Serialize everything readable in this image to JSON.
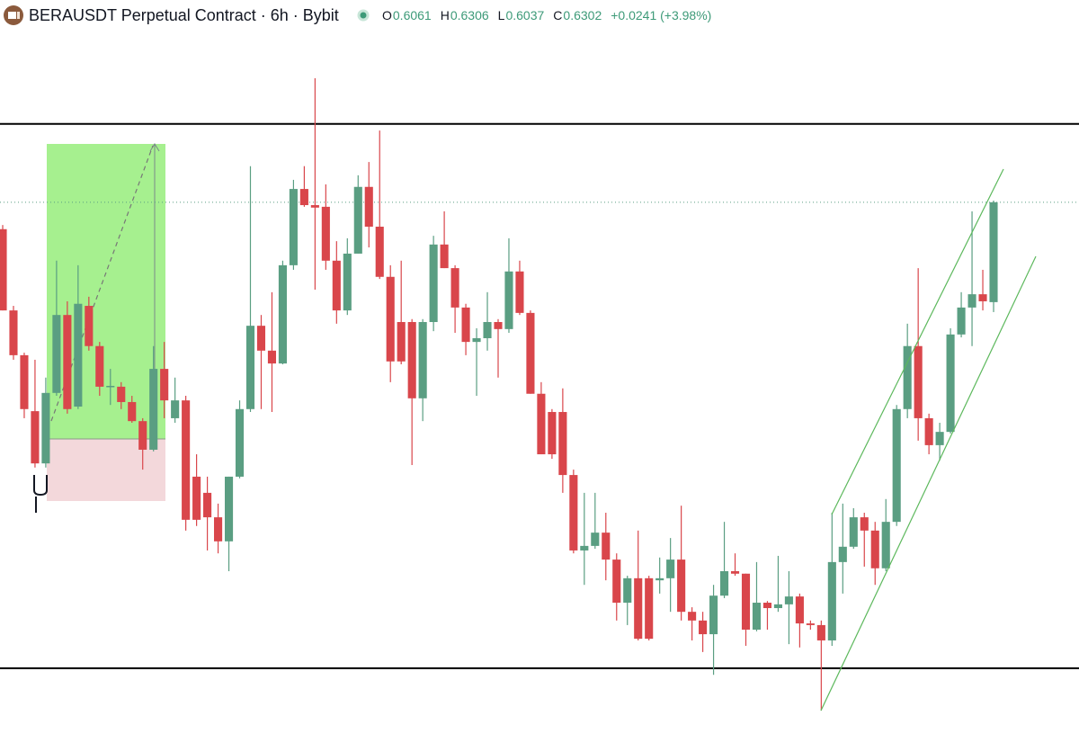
{
  "chart_data": {
    "type": "candlestick",
    "title": "BERAUSDT Perpetual Contract · 6h · Bybit",
    "ohlc_labels": [
      "O",
      "H",
      "L",
      "C"
    ],
    "change_label": "+0.0241 (+3.98%)",
    "up_color": "#5a9e82",
    "down_color": "#d9464b",
    "level_color": "#000000",
    "ylim": [
      0.5054,
      0.6703
    ],
    "levels": [
      0.6491,
      0.5178
    ],
    "open": [
      0.6237,
      0.6041,
      0.5933,
      0.5798,
      0.5672,
      0.5842,
      0.603,
      0.5809,
      0.6052,
      0.5955,
      0.5857,
      0.5857,
      0.582,
      0.5774,
      0.5705,
      0.59,
      0.5781,
      0.5824,
      0.564,
      0.5601,
      0.5542,
      0.5484,
      0.564,
      0.5803,
      0.6004,
      0.5944,
      0.5913,
      0.615,
      0.6334,
      0.6295,
      0.6291,
      0.6161,
      0.6041,
      0.6178,
      0.6339,
      0.6243,
      0.6122,
      0.6013,
      0.6013,
      0.5829,
      0.6013,
      0.62,
      0.6143,
      0.6048,
      0.5965,
      0.5974,
      0.6013,
      0.5996,
      0.6135,
      0.6035,
      0.584,
      0.5796,
      0.5796,
      0.5644,
      0.5462,
      0.5473,
      0.5505,
      0.544,
      0.5336,
      0.5395,
      0.5395,
      0.539,
      0.5395,
      0.544,
      0.5314,
      0.5293,
      0.526,
      0.5353,
      0.5412,
      0.5406,
      0.5271,
      0.5336,
      0.5323,
      0.5332,
      0.5351,
      0.5286,
      0.5282,
      0.5245,
      0.5434,
      0.5471,
      0.5542,
      0.551,
      0.5419,
      0.5531,
      0.5803,
      0.5955,
      0.5781,
      0.5716,
      0.5748,
      0.5983,
      0.6048,
      0.608,
      0.6061
    ],
    "high": [
      0.6247,
      0.6052,
      0.5939,
      0.5922,
      0.5879,
      0.6161,
      0.6063,
      0.615,
      0.6074,
      0.5965,
      0.59,
      0.5868,
      0.5835,
      0.5781,
      0.5955,
      0.5965,
      0.5879,
      0.5835,
      0.5694,
      0.564,
      0.5575,
      0.564,
      0.5824,
      0.6389,
      0.603,
      0.6085,
      0.6161,
      0.6356,
      0.6389,
      0.6601,
      0.6345,
      0.6208,
      0.6215,
      0.6367,
      0.6399,
      0.6475,
      0.615,
      0.6161,
      0.602,
      0.602,
      0.6221,
      0.628,
      0.615,
      0.6057,
      0.5998,
      0.6085,
      0.602,
      0.6215,
      0.6161,
      0.6041,
      0.5868,
      0.5803,
      0.5853,
      0.5657,
      0.5601,
      0.5601,
      0.5553,
      0.5455,
      0.5401,
      0.551,
      0.5401,
      0.5445,
      0.5492,
      0.557,
      0.5325,
      0.5314,
      0.5379,
      0.5531,
      0.5455,
      0.5406,
      0.5434,
      0.534,
      0.5449,
      0.5412,
      0.5358,
      0.5293,
      0.5293,
      0.5553,
      0.5575,
      0.5564,
      0.5553,
      0.5531,
      0.5586,
      0.5813,
      0.6009,
      0.6143,
      0.5792,
      0.577,
      0.5998,
      0.6085,
      0.628,
      0.6139,
      0.6306
    ],
    "low": [
      0.6041,
      0.5922,
      0.5781,
      0.5662,
      0.5662,
      0.5835,
      0.5792,
      0.5803,
      0.5944,
      0.5835,
      0.5813,
      0.5803,
      0.577,
      0.5657,
      0.5701,
      0.5781,
      0.577,
      0.551,
      0.5521,
      0.5462,
      0.5455,
      0.5412,
      0.5636,
      0.5796,
      0.5803,
      0.5796,
      0.5911,
      0.6139,
      0.6291,
      0.6091,
      0.6139,
      0.6009,
      0.603,
      0.6178,
      0.6193,
      0.6117,
      0.5868,
      0.5911,
      0.5668,
      0.5774,
      0.5991,
      0.6143,
      0.5987,
      0.5933,
      0.5835,
      0.5944,
      0.5879,
      0.5987,
      0.603,
      0.584,
      0.5694,
      0.5683,
      0.5601,
      0.5455,
      0.5379,
      0.5466,
      0.539,
      0.5293,
      0.5282,
      0.5245,
      0.5245,
      0.5358,
      0.5314,
      0.5293,
      0.5245,
      0.5217,
      0.5162,
      0.5347,
      0.5401,
      0.5232,
      0.5267,
      0.5271,
      0.5314,
      0.5236,
      0.5228,
      0.5271,
      0.5076,
      0.5232,
      0.5358,
      0.5466,
      0.5423,
      0.5379,
      0.5412,
      0.5521,
      0.5781,
      0.5727,
      0.5694,
      0.5679,
      0.5744,
      0.5976,
      0.5955,
      0.6041,
      0.6037
    ],
    "close": [
      0.6041,
      0.5933,
      0.5803,
      0.5672,
      0.5842,
      0.603,
      0.5803,
      0.6057,
      0.5955,
      0.5857,
      0.5859,
      0.582,
      0.5774,
      0.5705,
      0.59,
      0.5824,
      0.5824,
      0.5536,
      0.5536,
      0.5542,
      0.5484,
      0.564,
      0.5803,
      0.6004,
      0.5944,
      0.5913,
      0.615,
      0.6334,
      0.6295,
      0.6289,
      0.6161,
      0.6041,
      0.6178,
      0.6339,
      0.6243,
      0.6122,
      0.5918,
      0.5918,
      0.5829,
      0.6013,
      0.62,
      0.6143,
      0.6048,
      0.5965,
      0.5974,
      0.6013,
      0.5996,
      0.6135,
      0.6035,
      0.584,
      0.5694,
      0.5694,
      0.5644,
      0.5462,
      0.5473,
      0.5505,
      0.544,
      0.5336,
      0.5395,
      0.5249,
      0.5249,
      0.5395,
      0.544,
      0.5314,
      0.5293,
      0.526,
      0.5353,
      0.5412,
      0.5406,
      0.5271,
      0.5336,
      0.5323,
      0.5332,
      0.5351,
      0.5286,
      0.5282,
      0.5245,
      0.5434,
      0.5471,
      0.5542,
      0.551,
      0.5419,
      0.5531,
      0.5803,
      0.5955,
      0.5781,
      0.5716,
      0.5748,
      0.5983,
      0.6048,
      0.608,
      0.6063,
      0.6302
    ]
  }
}
